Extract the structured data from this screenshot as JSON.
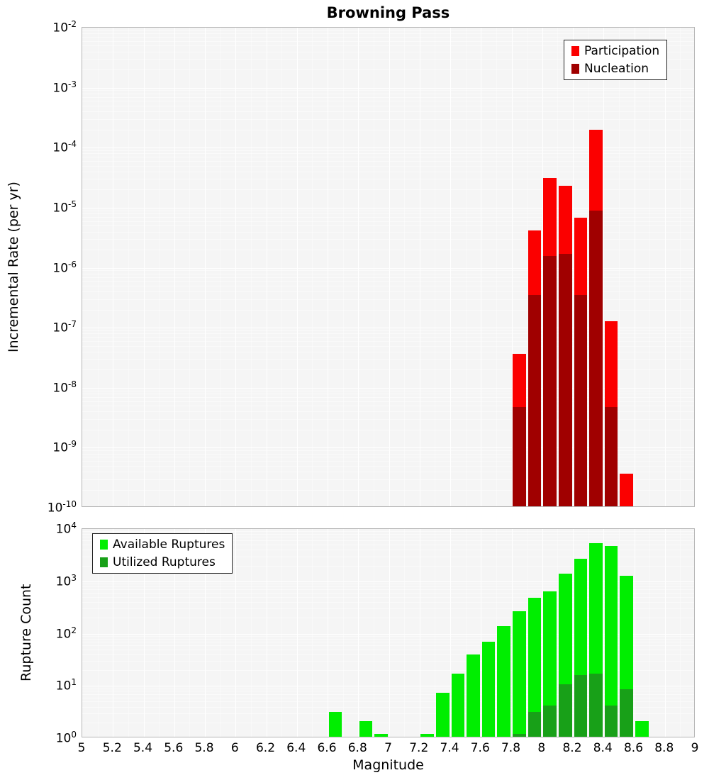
{
  "x_ticks": [
    "5",
    "5.2",
    "5.4",
    "5.6",
    "5.8",
    "6",
    "6.2",
    "6.4",
    "6.6",
    "6.8",
    "7",
    "7.2",
    "7.4",
    "7.6",
    "7.8",
    "8",
    "8.2",
    "8.4",
    "8.6",
    "8.8",
    "9"
  ],
  "chart_data": [
    {
      "type": "bar",
      "title": "Browning Pass",
      "xlabel": "",
      "ylabel": "Incremental Rate (per yr)",
      "xlim": [
        5,
        9
      ],
      "yscale": "log",
      "ylim": [
        1e-10,
        0.01
      ],
      "y_tick_exponents": [
        -2,
        -3,
        -4,
        -5,
        -6,
        -7,
        -8,
        -9,
        -10
      ],
      "x_bin_width": 0.1,
      "grid": true,
      "legend_position": "top-right",
      "series": [
        {
          "name": "Participation",
          "color": "#fb0000",
          "x": [
            7.85,
            7.95,
            8.05,
            8.15,
            8.25,
            8.35,
            8.45,
            8.55
          ],
          "y": [
            3.5e-08,
            4e-06,
            3e-05,
            2.2e-05,
            6.5e-06,
            0.00019,
            1.2e-07,
            3.5e-10
          ]
        },
        {
          "name": "Nucleation",
          "color": "#a00000",
          "x": [
            7.85,
            7.95,
            8.05,
            8.15,
            8.25,
            8.35,
            8.45
          ],
          "y": [
            4.5e-09,
            3.3e-07,
            1.5e-06,
            1.6e-06,
            3.3e-07,
            8.5e-06,
            4.5e-09
          ]
        }
      ]
    },
    {
      "type": "bar",
      "title": "",
      "xlabel": "Magnitude",
      "ylabel": "Rupture Count",
      "xlim": [
        5,
        9
      ],
      "yscale": "log",
      "ylim": [
        1,
        10000
      ],
      "y_tick_exponents": [
        4,
        3,
        2,
        1,
        0
      ],
      "x_bin_width": 0.1,
      "grid": true,
      "legend_position": "top-left",
      "series": [
        {
          "name": "Available Ruptures",
          "color": "#00ee00",
          "x": [
            6.65,
            6.85,
            6.95,
            7.25,
            7.35,
            7.45,
            7.55,
            7.65,
            7.75,
            7.85,
            7.95,
            8.05,
            8.15,
            8.25,
            8.35,
            8.45,
            8.55,
            8.65
          ],
          "y": [
            3,
            2,
            1,
            1,
            7,
            16,
            38,
            65,
            130,
            250,
            450,
            600,
            1300,
            2500,
            5000,
            4500,
            1200,
            2
          ]
        },
        {
          "name": "Utilized Ruptures",
          "color": "#18a018",
          "x": [
            7.85,
            7.95,
            8.05,
            8.15,
            8.25,
            8.35,
            8.45,
            8.55
          ],
          "y": [
            1,
            3,
            4,
            10,
            15,
            16,
            4,
            8
          ]
        }
      ]
    }
  ]
}
